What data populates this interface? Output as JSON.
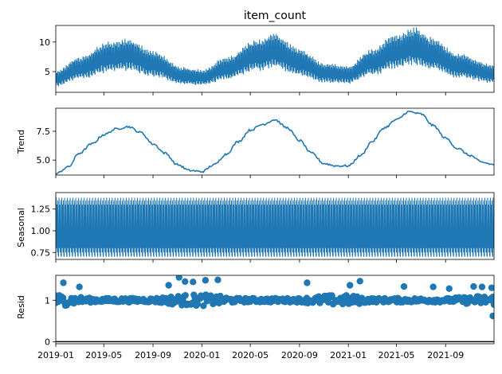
{
  "chart_data": [
    {
      "type": "line",
      "title": "item_count",
      "ylabel": "",
      "ylim": [
        1.5,
        12.8
      ],
      "yticks": [
        5,
        10
      ],
      "series": [
        {
          "name": "",
          "color": "#1f77b4",
          "baseline_keypoints": [
            [
              "2019-01-01",
              3.8
            ],
            [
              "2019-03-01",
              5.6
            ],
            [
              "2019-05-15",
              7.5
            ],
            [
              "2019-07-01",
              7.9
            ],
            [
              "2019-09-01",
              6.3
            ],
            [
              "2019-11-15",
              4.3
            ],
            [
              "2020-01-01",
              4.0
            ],
            [
              "2020-03-01",
              5.5
            ],
            [
              "2020-05-15",
              7.7
            ],
            [
              "2020-07-01",
              8.5
            ],
            [
              "2020-09-01",
              6.6
            ],
            [
              "2020-11-01",
              4.8
            ],
            [
              "2021-01-01",
              4.5
            ],
            [
              "2021-03-01",
              6.6
            ],
            [
              "2021-05-01",
              8.5
            ],
            [
              "2021-06-15",
              9.3
            ],
            [
              "2021-08-01",
              8.0
            ],
            [
              "2021-10-01",
              6.0
            ],
            [
              "2021-12-31",
              4.6
            ]
          ],
          "seasonal_amplitude_fraction": 0.35,
          "period_days": 7
        }
      ]
    },
    {
      "type": "line",
      "ylabel": "Trend",
      "ylim": [
        3.7,
        9.5
      ],
      "yticks": [
        5.0,
        7.5
      ],
      "series": [
        {
          "name": "",
          "color": "#1f77b4",
          "points": [
            [
              "2019-01-01",
              3.8
            ],
            [
              "2019-02-01",
              4.4
            ],
            [
              "2019-03-01",
              5.6
            ],
            [
              "2019-04-01",
              6.4
            ],
            [
              "2019-05-01",
              7.2
            ],
            [
              "2019-06-01",
              7.7
            ],
            [
              "2019-07-01",
              7.9
            ],
            [
              "2019-08-01",
              7.4
            ],
            [
              "2019-09-01",
              6.4
            ],
            [
              "2019-10-01",
              5.6
            ],
            [
              "2019-11-01",
              4.6
            ],
            [
              "2019-12-01",
              4.1
            ],
            [
              "2020-01-01",
              4.0
            ],
            [
              "2020-02-01",
              4.6
            ],
            [
              "2020-03-01",
              5.5
            ],
            [
              "2020-04-01",
              6.6
            ],
            [
              "2020-05-01",
              7.6
            ],
            [
              "2020-06-01",
              8.1
            ],
            [
              "2020-07-01",
              8.5
            ],
            [
              "2020-08-01",
              7.8
            ],
            [
              "2020-09-01",
              6.7
            ],
            [
              "2020-10-01",
              5.6
            ],
            [
              "2020-11-01",
              4.7
            ],
            [
              "2020-12-01",
              4.5
            ],
            [
              "2021-01-01",
              4.5
            ],
            [
              "2021-02-01",
              5.4
            ],
            [
              "2021-03-01",
              6.6
            ],
            [
              "2021-04-01",
              7.8
            ],
            [
              "2021-05-01",
              8.5
            ],
            [
              "2021-06-01",
              9.2
            ],
            [
              "2021-07-01",
              9.0
            ],
            [
              "2021-08-01",
              8.0
            ],
            [
              "2021-09-01",
              6.9
            ],
            [
              "2021-10-01",
              6.0
            ],
            [
              "2021-11-01",
              5.4
            ],
            [
              "2021-12-01",
              4.8
            ],
            [
              "2021-12-31",
              4.6
            ]
          ]
        }
      ]
    },
    {
      "type": "line",
      "ylabel": "Seasonal",
      "ylim": [
        0.67,
        1.44
      ],
      "yticks": [
        0.75,
        1.0,
        1.25
      ],
      "series": [
        {
          "name": "",
          "color": "#1f77b4",
          "period_days": 7,
          "weekly_pattern": [
            0.7,
            1.38,
            0.8,
            1.3,
            0.75,
            1.35,
            0.72
          ]
        }
      ]
    },
    {
      "type": "scatter",
      "ylabel": "Resid",
      "ylim": [
        -0.05,
        1.6
      ],
      "yticks": [
        0,
        1
      ],
      "baseline": 0,
      "series": [
        {
          "name": "",
          "color": "#1f77b4",
          "center": 1.0,
          "outliers": [
            [
              "2019-01-20",
              1.42
            ],
            [
              "2019-03-01",
              1.32
            ],
            [
              "2019-10-10",
              1.36
            ],
            [
              "2019-11-05",
              1.55
            ],
            [
              "2019-11-20",
              1.45
            ],
            [
              "2019-12-10",
              1.44
            ],
            [
              "2020-01-10",
              1.48
            ],
            [
              "2020-02-10",
              1.49
            ],
            [
              "2020-09-20",
              1.42
            ],
            [
              "2021-01-05",
              1.36
            ],
            [
              "2021-01-30",
              1.46
            ],
            [
              "2021-05-20",
              1.33
            ],
            [
              "2021-08-01",
              1.32
            ],
            [
              "2021-09-10",
              1.28
            ],
            [
              "2021-11-10",
              1.33
            ],
            [
              "2021-12-01",
              1.32
            ],
            [
              "2021-12-25",
              1.3
            ],
            [
              "2021-12-28",
              0.62
            ]
          ]
        }
      ]
    }
  ],
  "x_axis": {
    "xlim": [
      "2019-01-01",
      "2021-12-31"
    ],
    "ticks": [
      "2019-01",
      "2019-05",
      "2019-09",
      "2020-01",
      "2020-05",
      "2020-09",
      "2021-01",
      "2021-05",
      "2021-09"
    ]
  }
}
